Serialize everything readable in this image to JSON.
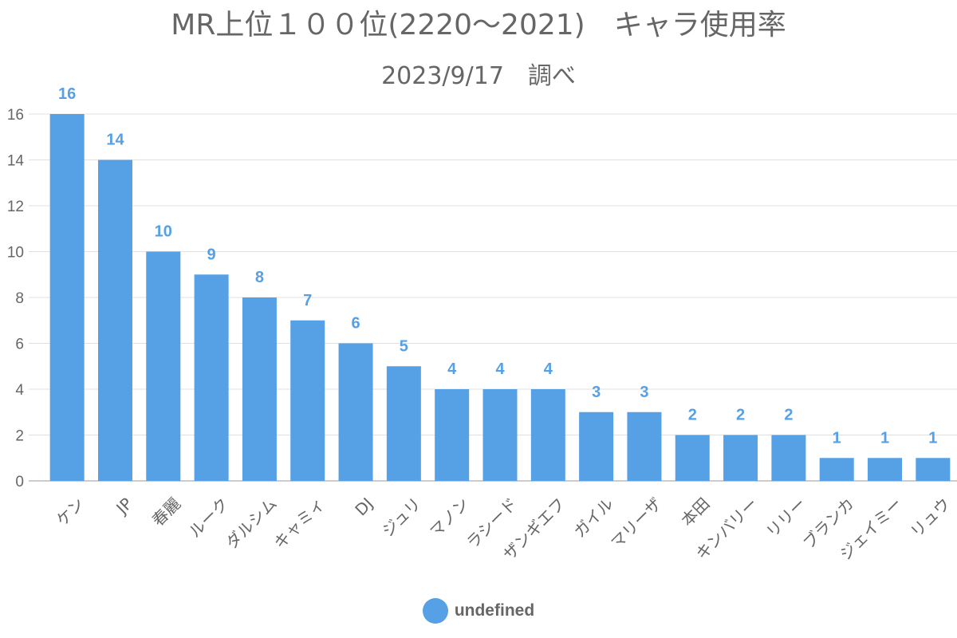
{
  "chart_data": {
    "type": "bar",
    "title": "MR上位１００位(2220〜2021)　キャラ使用率",
    "subtitle": "2023/9/17　調べ",
    "categories": [
      "ケン",
      "JP",
      "春麗",
      "ルーク",
      "ダルシム",
      "キャミィ",
      "DJ",
      "ジュリ",
      "マノン",
      "ラシード",
      "ザンギエフ",
      "ガイル",
      "マリーザ",
      "本田",
      "キンバリー",
      "リリー",
      "ブランカ",
      "ジェイミー",
      "リュウ"
    ],
    "values": [
      16,
      14,
      10,
      9,
      8,
      7,
      6,
      5,
      4,
      4,
      4,
      3,
      3,
      2,
      2,
      2,
      1,
      1,
      1
    ],
    "ylim": [
      0,
      16
    ],
    "yticks": [
      0,
      2,
      4,
      6,
      8,
      10,
      12,
      14,
      16
    ],
    "grid": true,
    "legend": {
      "position": "bottom",
      "label": "undefined"
    },
    "colors": {
      "bar": "#56a0e5",
      "data_label": "#56a0e5",
      "text": "#666666"
    }
  }
}
